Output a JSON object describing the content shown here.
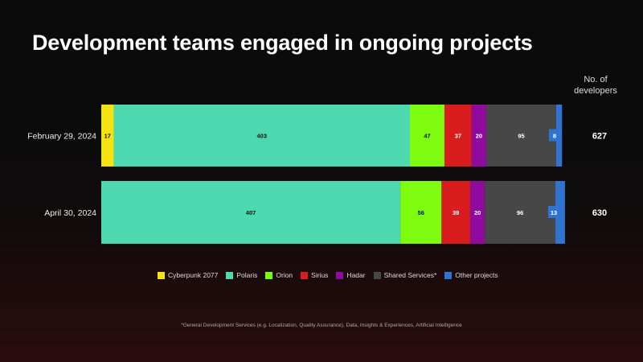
{
  "chart_data": {
    "type": "bar",
    "orientation": "horizontal",
    "stacked": true,
    "title": "Development teams engaged in ongoing projects",
    "total_header": "No. of developers",
    "categories": [
      "February 29, 2024",
      "April 30, 2024"
    ],
    "totals": [
      "627",
      "630"
    ],
    "series": [
      {
        "name": "Cyberpunk 2077",
        "color": "#f5e212",
        "values": [
          17,
          0
        ],
        "label_color": "#111"
      },
      {
        "name": "Polaris",
        "color": "#4dd9b0",
        "values": [
          403,
          407
        ],
        "label_color": "#111"
      },
      {
        "name": "Orion",
        "color": "#7dfc0f",
        "values": [
          47,
          56
        ],
        "label_color": "#111"
      },
      {
        "name": "Sirius",
        "color": "#d91c1c",
        "values": [
          37,
          39
        ],
        "label_color": "#fff"
      },
      {
        "name": "Hadar",
        "color": "#8e0b9e",
        "values": [
          20,
          20
        ],
        "label_color": "#fff"
      },
      {
        "name": "Shared Services*",
        "color": "#474747",
        "values": [
          95,
          96
        ],
        "label_color": "#fff"
      },
      {
        "name": "Other projects",
        "color": "#2f74d0",
        "values": [
          8,
          13
        ],
        "label_color": "#fff"
      }
    ],
    "legend": "bottom",
    "grid": false,
    "footnote": "*General Development Services (e.g. Localization, Quality Assurance), Data, Insights & Experiences, Artificial Intelligence"
  }
}
